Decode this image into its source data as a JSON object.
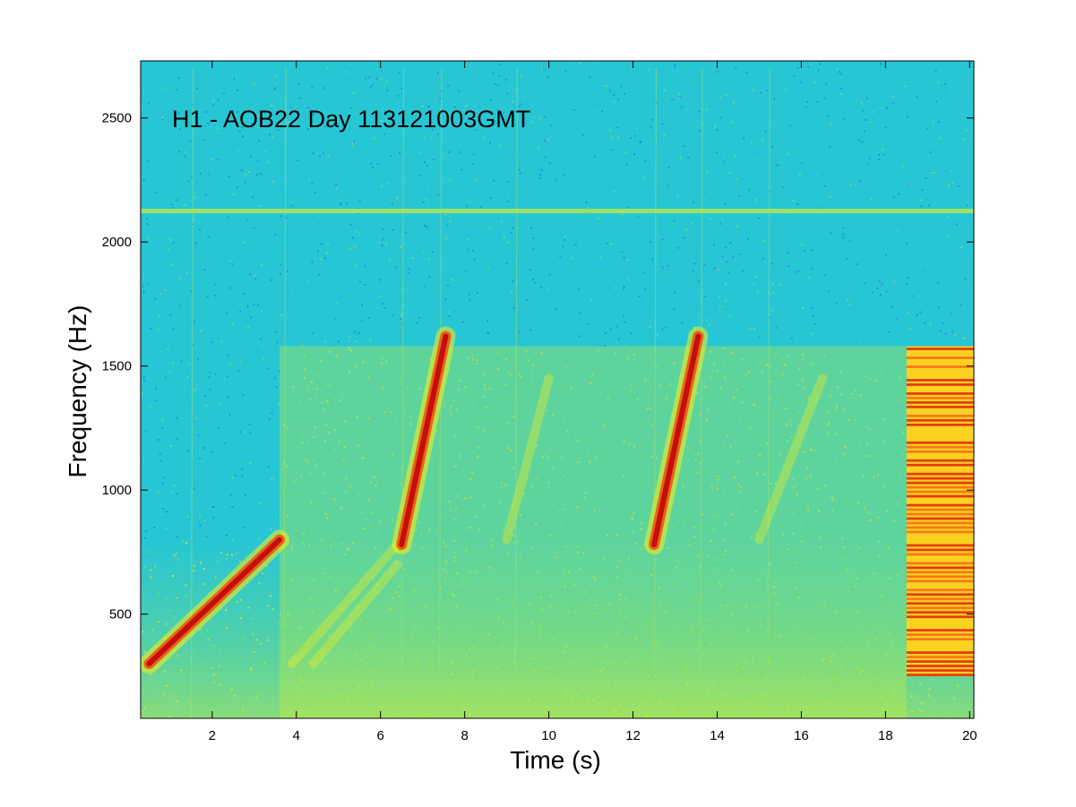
{
  "chart_data": {
    "type": "heatmap",
    "subtype": "spectrogram",
    "title": "H1 - AOB22 Day 113121003GMT",
    "xlabel": "Time (s)",
    "ylabel": "Frequency (Hz)",
    "xlim": [
      0.3,
      20.1
    ],
    "ylim": [
      80,
      2730
    ],
    "x_ticks": [
      2,
      4,
      6,
      8,
      10,
      12,
      14,
      16,
      18,
      20
    ],
    "y_ticks": [
      500,
      1000,
      1500,
      2000,
      2500
    ],
    "grid": false,
    "colormap": "jet",
    "colors": {
      "background_low": "#1ec8d8",
      "noise_mid": "#8ce070",
      "band_high": "#f5f01a",
      "peak": "#c01010"
    },
    "features": {
      "horizontal_line": {
        "frequency": 2125
      },
      "chirps": [
        {
          "t_start": 0.5,
          "t_end": 3.6,
          "f_start": 300,
          "f_end": 800
        },
        {
          "t_start": 6.5,
          "t_end": 7.55,
          "f_start": 780,
          "f_end": 1620
        },
        {
          "t_start": 12.5,
          "t_end": 13.55,
          "f_start": 780,
          "f_end": 1620
        }
      ],
      "elevated_band": {
        "t_start": 3.6,
        "t_end": 18.5,
        "f_low": 80,
        "f_high": 1580
      },
      "tone_stack": {
        "t_start": 18.5,
        "t_end": 20.1,
        "f_low": 250,
        "f_high": 1580
      }
    }
  }
}
